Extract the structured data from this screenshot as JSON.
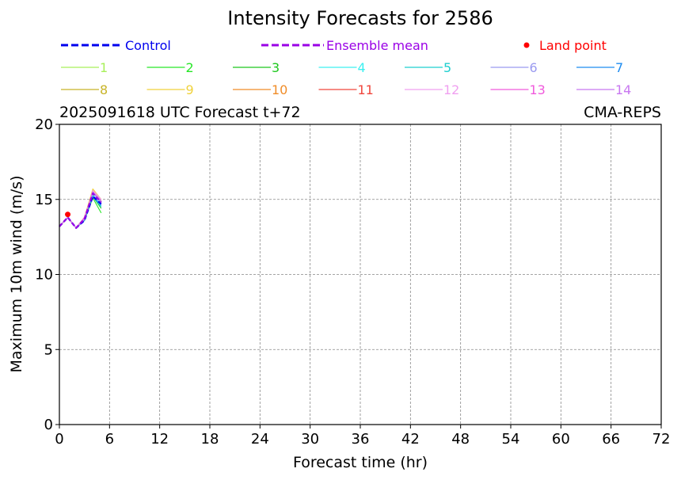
{
  "chart_data": {
    "type": "line",
    "title": "Intensity Forecasts for 2586",
    "subtitle_left": "2025091618 UTC Forecast t+72",
    "subtitle_right": "CMA-REPS",
    "xlabel": "Forecast time (hr)",
    "ylabel": "Maximum 10m wind (m/s)",
    "xlim": [
      0,
      72
    ],
    "ylim": [
      0,
      20
    ],
    "xticks": [
      0,
      6,
      12,
      18,
      24,
      30,
      36,
      42,
      48,
      54,
      60,
      66,
      72
    ],
    "yticks": [
      0,
      5,
      10,
      15,
      20
    ],
    "grid": true,
    "legend": {
      "control": {
        "label": "Control",
        "color": "#0000ee"
      },
      "ensemble_mean": {
        "label": "Ensemble mean",
        "color": "#9a00e6"
      },
      "land_point": {
        "label": "Land point",
        "color": "#ff0000"
      }
    },
    "x": [
      0,
      1,
      2,
      3,
      4,
      5
    ],
    "series": [
      {
        "name": "1",
        "color": "#a8f05a",
        "values": [
          13.2,
          13.8,
          13.1,
          13.7,
          15.6,
          14.8
        ]
      },
      {
        "name": "2",
        "color": "#28e628",
        "values": [
          13.2,
          13.8,
          13.1,
          13.6,
          15.1,
          14.1
        ]
      },
      {
        "name": "3",
        "color": "#1ec81e",
        "values": [
          13.2,
          13.8,
          13.1,
          13.6,
          15.2,
          14.4
        ]
      },
      {
        "name": "4",
        "color": "#3cf0f0",
        "values": [
          13.2,
          13.8,
          13.1,
          13.7,
          15.3,
          14.6
        ]
      },
      {
        "name": "5",
        "color": "#1ecfcf",
        "values": [
          13.2,
          13.8,
          13.1,
          13.7,
          15.2,
          14.5
        ]
      },
      {
        "name": "6",
        "color": "#9a9af0",
        "values": [
          13.2,
          13.8,
          13.1,
          13.7,
          15.4,
          14.8
        ]
      },
      {
        "name": "7",
        "color": "#1e8cf0",
        "values": [
          13.2,
          13.8,
          13.1,
          13.6,
          15.2,
          14.6
        ]
      },
      {
        "name": "8",
        "color": "#c8b428",
        "values": [
          13.2,
          13.8,
          13.1,
          13.8,
          15.6,
          14.9
        ]
      },
      {
        "name": "9",
        "color": "#f0d23c",
        "values": [
          13.2,
          13.8,
          13.1,
          13.8,
          15.7,
          15.0
        ]
      },
      {
        "name": "10",
        "color": "#f08c28",
        "values": [
          13.2,
          13.8,
          13.1,
          13.7,
          15.5,
          14.9
        ]
      },
      {
        "name": "11",
        "color": "#f0463c",
        "values": [
          13.2,
          13.8,
          13.1,
          13.7,
          15.5,
          14.9
        ]
      },
      {
        "name": "12",
        "color": "#f0a0f0",
        "values": [
          13.2,
          13.8,
          13.1,
          13.7,
          15.6,
          15.0
        ]
      },
      {
        "name": "13",
        "color": "#f05adc",
        "values": [
          13.2,
          13.8,
          13.1,
          13.8,
          15.5,
          14.9
        ]
      },
      {
        "name": "14",
        "color": "#c878f0",
        "values": [
          13.2,
          13.8,
          13.1,
          13.7,
          15.5,
          14.9
        ]
      },
      {
        "name": "Control",
        "color": "#0000ee",
        "values": [
          13.2,
          13.8,
          13.1,
          13.6,
          15.2,
          14.7
        ]
      },
      {
        "name": "Ensemble mean",
        "color": "#9a00e6",
        "values": [
          13.2,
          13.8,
          13.1,
          13.7,
          15.4,
          14.8
        ]
      }
    ],
    "land_points": [
      {
        "x": 1,
        "y": 14.0
      }
    ]
  }
}
